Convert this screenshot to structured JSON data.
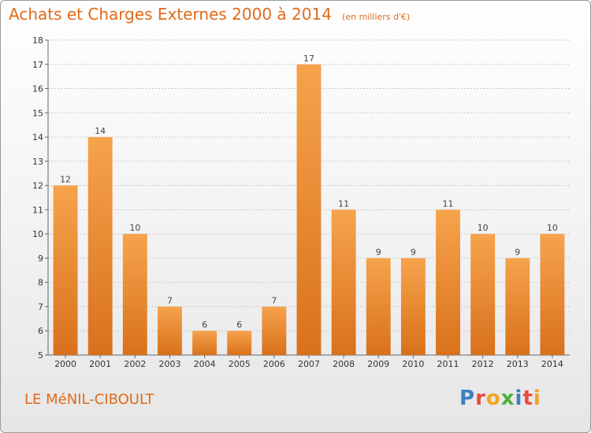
{
  "header": {
    "title": "Achats et Charges Externes 2000 à 2014",
    "unit": "(en milliers d'€)"
  },
  "footer": {
    "place": "LE MéNIL-CIBOULT",
    "logo_letters": [
      "P",
      "r",
      "o",
      "x",
      "i",
      "t",
      "i"
    ],
    "logo_colors": [
      "#3c7fc4",
      "#e84c3d",
      "#f2a31b",
      "#4caf3e",
      "#3c7fc4",
      "#e84c3d",
      "#f2a31b"
    ]
  },
  "colors": {
    "bar_light": "#f6a34c",
    "bar_dark": "#d9711c",
    "grid": "#c8c8c8",
    "title": "#e06a1a"
  },
  "chart_data": {
    "type": "bar",
    "categories": [
      "2000",
      "2001",
      "2002",
      "2003",
      "2004",
      "2005",
      "2006",
      "2007",
      "2008",
      "2009",
      "2010",
      "2011",
      "2012",
      "2013",
      "2014"
    ],
    "values": [
      12,
      14,
      10,
      7,
      6,
      6,
      7,
      17,
      11,
      9,
      9,
      11,
      10,
      9,
      10
    ],
    "ylim": [
      5,
      18
    ],
    "yticks": [
      5,
      6,
      7,
      8,
      9,
      10,
      11,
      12,
      13,
      14,
      15,
      16,
      17,
      18
    ],
    "grid": true
  }
}
